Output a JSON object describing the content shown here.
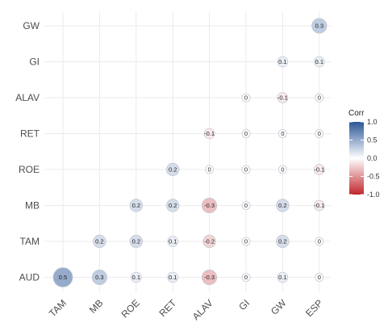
{
  "chart_data": {
    "type": "heatmap",
    "title": "",
    "xlabel": "",
    "ylabel": "",
    "x_categories": [
      "TAM",
      "MB",
      "ROE",
      "RET",
      "ALAV",
      "GI",
      "GW",
      "ESP"
    ],
    "y_categories": [
      "AUD",
      "TAM",
      "MB",
      "ROE",
      "RET",
      "ALAV",
      "GI",
      "GW"
    ],
    "cells": [
      {
        "x": "TAM",
        "y": "AUD",
        "value": 0.5,
        "label": "0.5"
      },
      {
        "x": "MB",
        "y": "AUD",
        "value": 0.3,
        "label": "0.3"
      },
      {
        "x": "ROE",
        "y": "AUD",
        "value": 0.1,
        "label": "0.1"
      },
      {
        "x": "RET",
        "y": "AUD",
        "value": 0.1,
        "label": "0.1"
      },
      {
        "x": "ALAV",
        "y": "AUD",
        "value": -0.3,
        "label": "-0.3"
      },
      {
        "x": "GI",
        "y": "AUD",
        "value": 0.0,
        "label": "0"
      },
      {
        "x": "GW",
        "y": "AUD",
        "value": 0.1,
        "label": "0.1"
      },
      {
        "x": "ESP",
        "y": "AUD",
        "value": 0.0,
        "label": "0"
      },
      {
        "x": "MB",
        "y": "TAM",
        "value": 0.2,
        "label": "0.2"
      },
      {
        "x": "ROE",
        "y": "TAM",
        "value": 0.2,
        "label": "0.2"
      },
      {
        "x": "RET",
        "y": "TAM",
        "value": 0.1,
        "label": "0.1"
      },
      {
        "x": "ALAV",
        "y": "TAM",
        "value": -0.2,
        "label": "-0.2"
      },
      {
        "x": "GI",
        "y": "TAM",
        "value": 0.0,
        "label": "0"
      },
      {
        "x": "GW",
        "y": "TAM",
        "value": 0.2,
        "label": "0.2"
      },
      {
        "x": "ESP",
        "y": "TAM",
        "value": 0.0,
        "label": "0"
      },
      {
        "x": "ROE",
        "y": "MB",
        "value": 0.2,
        "label": "0.2"
      },
      {
        "x": "RET",
        "y": "MB",
        "value": 0.2,
        "label": "0.2"
      },
      {
        "x": "ALAV",
        "y": "MB",
        "value": -0.3,
        "label": "-0.3"
      },
      {
        "x": "GI",
        "y": "MB",
        "value": 0.0,
        "label": "0"
      },
      {
        "x": "GW",
        "y": "MB",
        "value": 0.2,
        "label": "0.2"
      },
      {
        "x": "ESP",
        "y": "MB",
        "value": -0.1,
        "label": "-0.1"
      },
      {
        "x": "RET",
        "y": "ROE",
        "value": 0.2,
        "label": "0.2"
      },
      {
        "x": "ALAV",
        "y": "ROE",
        "value": 0.0,
        "label": "0"
      },
      {
        "x": "GI",
        "y": "ROE",
        "value": 0.0,
        "label": "0"
      },
      {
        "x": "GW",
        "y": "ROE",
        "value": 0.0,
        "label": "0"
      },
      {
        "x": "ESP",
        "y": "ROE",
        "value": -0.1,
        "label": "-0.1"
      },
      {
        "x": "ALAV",
        "y": "RET",
        "value": -0.1,
        "label": "-0.1"
      },
      {
        "x": "GI",
        "y": "RET",
        "value": 0.0,
        "label": "0"
      },
      {
        "x": "GW",
        "y": "RET",
        "value": 0.0,
        "label": "0"
      },
      {
        "x": "ESP",
        "y": "RET",
        "value": 0.0,
        "label": "0"
      },
      {
        "x": "GI",
        "y": "ALAV",
        "value": 0.0,
        "label": "0"
      },
      {
        "x": "GW",
        "y": "ALAV",
        "value": -0.1,
        "label": "-0.1"
      },
      {
        "x": "ESP",
        "y": "ALAV",
        "value": 0.0,
        "label": "0"
      },
      {
        "x": "GW",
        "y": "GI",
        "value": 0.1,
        "label": "0.1"
      },
      {
        "x": "ESP",
        "y": "GI",
        "value": 0.1,
        "label": "0.1"
      },
      {
        "x": "ESP",
        "y": "GW",
        "value": 0.3,
        "label": "0.3"
      }
    ],
    "legend": {
      "title": "Corr",
      "range": [
        -1.0,
        1.0
      ],
      "ticks": [
        {
          "value": 1.0,
          "label": "1.0"
        },
        {
          "value": 0.5,
          "label": "0.5"
        },
        {
          "value": 0.0,
          "label": "0.0"
        },
        {
          "value": -0.5,
          "label": "-0.5"
        },
        {
          "value": -1.0,
          "label": "-1.0"
        }
      ],
      "colors": {
        "low": "#c1272d",
        "mid": "#ffffff",
        "high": "#2b5797"
      },
      "placement": "right"
    },
    "grid": true
  }
}
